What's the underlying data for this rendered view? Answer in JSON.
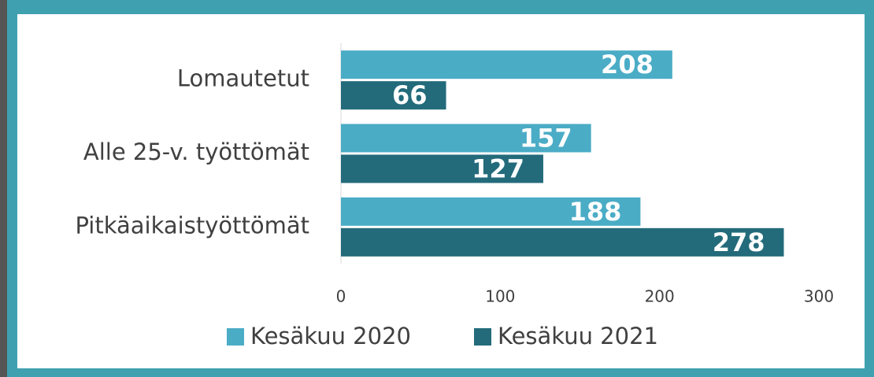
{
  "chart_data": {
    "type": "bar",
    "orientation": "horizontal",
    "categories": [
      "Lomautetut",
      "Alle 25-v. työttömät",
      "Pitkäaikaistyöttömät"
    ],
    "series": [
      {
        "name": "Kesäkuu 2020",
        "color": "#4bacc6",
        "values": [
          208,
          157,
          188
        ]
      },
      {
        "name": "Kesäkuu 2021",
        "color": "#236b7b",
        "values": [
          66,
          127,
          278
        ]
      }
    ],
    "xlim": [
      0,
      300
    ],
    "xticks": [
      0,
      100,
      200,
      300
    ],
    "grid": false,
    "legend": "bottom"
  }
}
